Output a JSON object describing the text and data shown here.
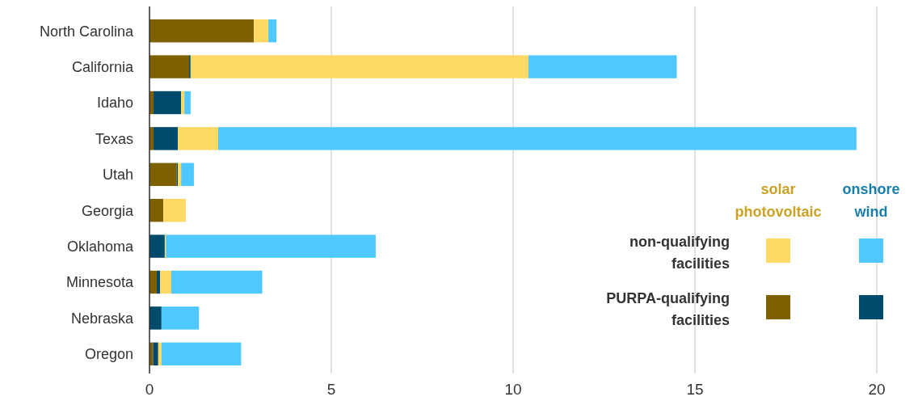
{
  "chart_data": {
    "type": "bar",
    "orientation": "horizontal",
    "stacked": true,
    "categories": [
      "North Carolina",
      "California",
      "Idaho",
      "Texas",
      "Utah",
      "Georgia",
      "Oklahoma",
      "Minnesota",
      "Nebraska",
      "Oregon"
    ],
    "series": [
      {
        "color": "#7f6000",
        "values": [
          2.87,
          1.09,
          0.11,
          0.11,
          0.75,
          0.38,
          0,
          0.2,
          0,
          0.1
        ]
      },
      {
        "color": "#004a6b",
        "values": [
          0,
          0.04,
          0.76,
          0.67,
          0.03,
          0,
          0.42,
          0.09,
          0.33,
          0.14
        ]
      },
      {
        "color": "#ffd966",
        "values": [
          0.4,
          9.29,
          0.09,
          1.11,
          0.09,
          0.62,
          0.03,
          0.31,
          0,
          0.09
        ]
      },
      {
        "color": "#4fc8ff",
        "values": [
          0.22,
          4.08,
          0.17,
          17.55,
          0.35,
          0,
          5.77,
          2.5,
          1.03,
          2.19
        ]
      }
    ],
    "xlim": [
      0,
      20
    ],
    "xticks": [
      0,
      5,
      10,
      15,
      20
    ],
    "grid": "x",
    "annotations": [
      "solar photovoltaic",
      "onshore wind",
      "non-qualifying facilities",
      "PURPA-qualifying facilities"
    ]
  }
}
